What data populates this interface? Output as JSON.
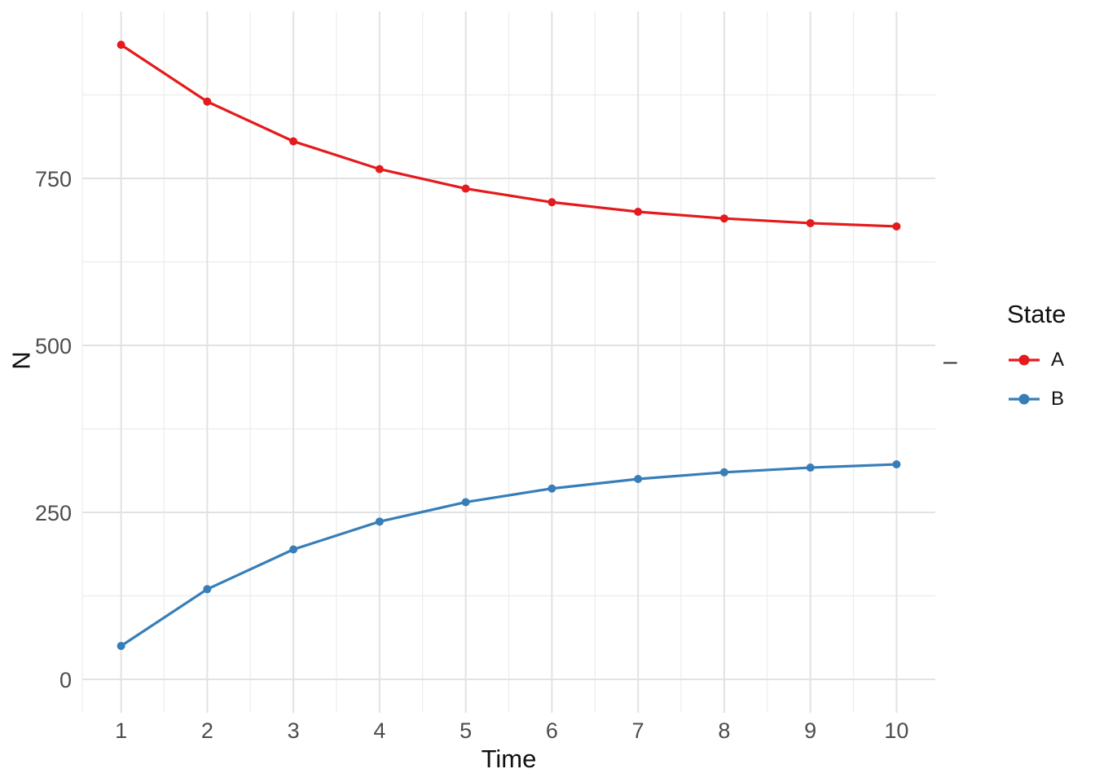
{
  "chart_data": {
    "type": "line",
    "title": "",
    "xlabel": "Time",
    "ylabel": "N",
    "x": [
      1,
      2,
      3,
      4,
      5,
      6,
      7,
      8,
      9,
      10
    ],
    "series": [
      {
        "name": "A",
        "color": "#E41A1C",
        "values": [
          950,
          865,
          805.5,
          763.9,
          734.7,
          714.3,
          700,
          690,
          683,
          678.1
        ]
      },
      {
        "name": "B",
        "color": "#377EB8",
        "values": [
          50,
          135,
          194.5,
          236.2,
          265.3,
          285.7,
          300,
          310,
          317,
          321.9
        ]
      }
    ],
    "xlim": [
      0.55,
      10.45
    ],
    "ylim": [
      -50,
      1000
    ],
    "x_ticks": [
      1,
      2,
      3,
      4,
      5,
      6,
      7,
      8,
      9,
      10
    ],
    "y_ticks": [
      0,
      250,
      500,
      750
    ],
    "x_minor": [
      0.5,
      1.5,
      2.5,
      3.5,
      4.5,
      5.5,
      6.5,
      7.5,
      8.5,
      9.5
    ],
    "y_minor": [
      125,
      375,
      625,
      875
    ],
    "grid": "on",
    "marker": "circle",
    "legend": {
      "title": "State",
      "position": "right",
      "entries": [
        {
          "label": "A",
          "color": "#E41A1C"
        },
        {
          "label": "B",
          "color": "#377EB8"
        }
      ]
    },
    "colors": {
      "grid_major": "#E2E2E2",
      "grid_minor": "#ECECEC",
      "tick_label": "#4D4D4D"
    }
  },
  "annotations": {
    "right_axis_dash": "–"
  }
}
